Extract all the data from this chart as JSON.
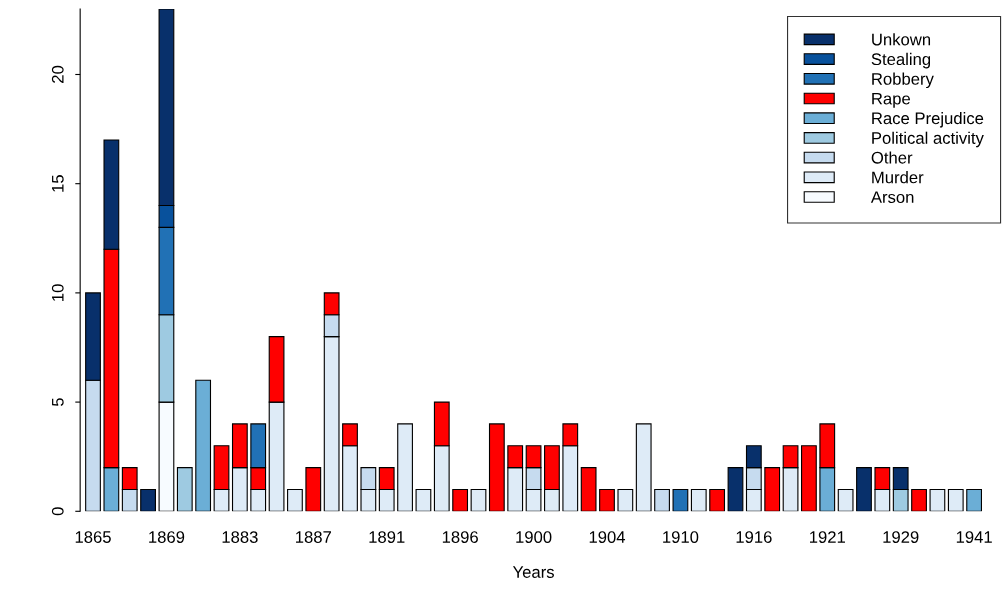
{
  "chart_data": {
    "type": "bar",
    "stacked": true,
    "xlabel": "Years",
    "legend": "top right",
    "grid": false,
    "tick_labels": "xy",
    "categories": [
      "1865",
      null,
      null,
      null,
      "1869",
      null,
      null,
      null,
      "1883",
      null,
      null,
      null,
      "1887",
      null,
      null,
      null,
      "1891",
      null,
      null,
      null,
      "1896",
      null,
      null,
      null,
      "1900",
      null,
      null,
      null,
      "1904",
      null,
      null,
      null,
      "1910",
      null,
      null,
      null,
      "1916",
      null,
      null,
      null,
      "1921",
      null,
      null,
      null,
      "1929",
      null,
      null,
      null,
      "1941"
    ],
    "ylim": [
      0,
      23
    ],
    "yticks": [
      0,
      5,
      10,
      15,
      20
    ],
    "series": [
      {
        "name": "Arson",
        "color": "#f7fbff",
        "values": [
          null,
          null,
          null,
          null,
          5,
          null,
          null,
          null,
          null,
          null,
          null,
          null,
          null,
          null,
          null,
          null,
          null,
          null,
          null,
          null,
          null,
          null,
          null,
          null,
          null,
          null,
          null,
          null,
          null,
          null,
          null,
          null,
          null,
          null,
          null,
          null,
          null,
          null,
          null,
          null,
          null,
          null,
          null,
          null,
          null,
          null,
          null,
          null,
          null
        ]
      },
      {
        "name": "Murder",
        "color": "#deebf7",
        "values": [
          null,
          null,
          null,
          null,
          null,
          null,
          null,
          1,
          2,
          1,
          5,
          1,
          null,
          8,
          3,
          1,
          1,
          4,
          1,
          3,
          null,
          1,
          null,
          2,
          1,
          1,
          3,
          null,
          null,
          1,
          4,
          null,
          null,
          1,
          null,
          null,
          1,
          null,
          2,
          null,
          null,
          1,
          null,
          1,
          null,
          null,
          1,
          1,
          null
        ]
      },
      {
        "name": "Other",
        "color": "#c6dbef",
        "values": [
          6,
          null,
          1,
          null,
          null,
          null,
          null,
          null,
          null,
          null,
          null,
          null,
          null,
          1,
          null,
          1,
          null,
          null,
          null,
          null,
          null,
          null,
          null,
          null,
          1,
          null,
          null,
          null,
          null,
          null,
          null,
          1,
          null,
          null,
          null,
          null,
          1,
          null,
          null,
          null,
          null,
          null,
          null,
          null,
          null,
          null,
          null,
          null,
          null
        ]
      },
      {
        "name": "Political activity",
        "color": "#9ecae1",
        "values": [
          null,
          null,
          null,
          null,
          4,
          2,
          null,
          null,
          null,
          null,
          null,
          null,
          null,
          null,
          null,
          null,
          null,
          null,
          null,
          null,
          null,
          null,
          null,
          null,
          null,
          null,
          null,
          null,
          null,
          null,
          null,
          null,
          null,
          null,
          null,
          null,
          null,
          null,
          null,
          null,
          null,
          null,
          null,
          null,
          1,
          null,
          null,
          null,
          null
        ]
      },
      {
        "name": "Race Prejudice",
        "color": "#6baed6",
        "values": [
          null,
          2,
          null,
          null,
          null,
          null,
          6,
          null,
          null,
          null,
          null,
          null,
          null,
          null,
          null,
          null,
          null,
          null,
          null,
          null,
          null,
          null,
          null,
          null,
          null,
          null,
          null,
          null,
          null,
          null,
          null,
          null,
          null,
          null,
          null,
          null,
          null,
          null,
          null,
          null,
          2,
          null,
          null,
          null,
          null,
          null,
          null,
          null,
          1
        ]
      },
      {
        "name": "Rape",
        "color": "#ff0000",
        "values": [
          null,
          10,
          1,
          null,
          null,
          null,
          null,
          2,
          2,
          1,
          3,
          null,
          2,
          1,
          1,
          null,
          1,
          null,
          null,
          2,
          1,
          null,
          4,
          1,
          1,
          2,
          1,
          2,
          1,
          null,
          null,
          null,
          null,
          null,
          1,
          null,
          null,
          2,
          1,
          3,
          2,
          null,
          null,
          1,
          null,
          1,
          null,
          null,
          null
        ]
      },
      {
        "name": "Robbery",
        "color": "#2171b5",
        "values": [
          null,
          null,
          null,
          null,
          4,
          null,
          null,
          null,
          null,
          2,
          null,
          null,
          null,
          null,
          null,
          null,
          null,
          null,
          null,
          null,
          null,
          null,
          null,
          null,
          null,
          null,
          null,
          null,
          null,
          null,
          null,
          null,
          1,
          null,
          null,
          null,
          null,
          null,
          null,
          null,
          null,
          null,
          null,
          null,
          null,
          null,
          null,
          null,
          null
        ]
      },
      {
        "name": "Stealing",
        "color": "#08519c",
        "values": [
          null,
          null,
          null,
          null,
          1,
          null,
          null,
          null,
          null,
          null,
          null,
          null,
          null,
          null,
          null,
          null,
          null,
          null,
          null,
          null,
          null,
          null,
          null,
          null,
          null,
          null,
          null,
          null,
          null,
          null,
          null,
          null,
          null,
          null,
          null,
          null,
          null,
          null,
          null,
          null,
          null,
          null,
          null,
          null,
          null,
          null,
          null,
          null,
          null
        ]
      },
      {
        "name": "Unkown",
        "color": "#08306b",
        "values": [
          4,
          5,
          null,
          1,
          9,
          null,
          null,
          null,
          null,
          null,
          null,
          null,
          null,
          null,
          null,
          null,
          null,
          null,
          null,
          null,
          null,
          null,
          null,
          null,
          null,
          null,
          null,
          null,
          null,
          null,
          null,
          null,
          null,
          null,
          null,
          2,
          1,
          null,
          null,
          null,
          null,
          null,
          2,
          null,
          1,
          null,
          null,
          null,
          null
        ]
      }
    ]
  }
}
